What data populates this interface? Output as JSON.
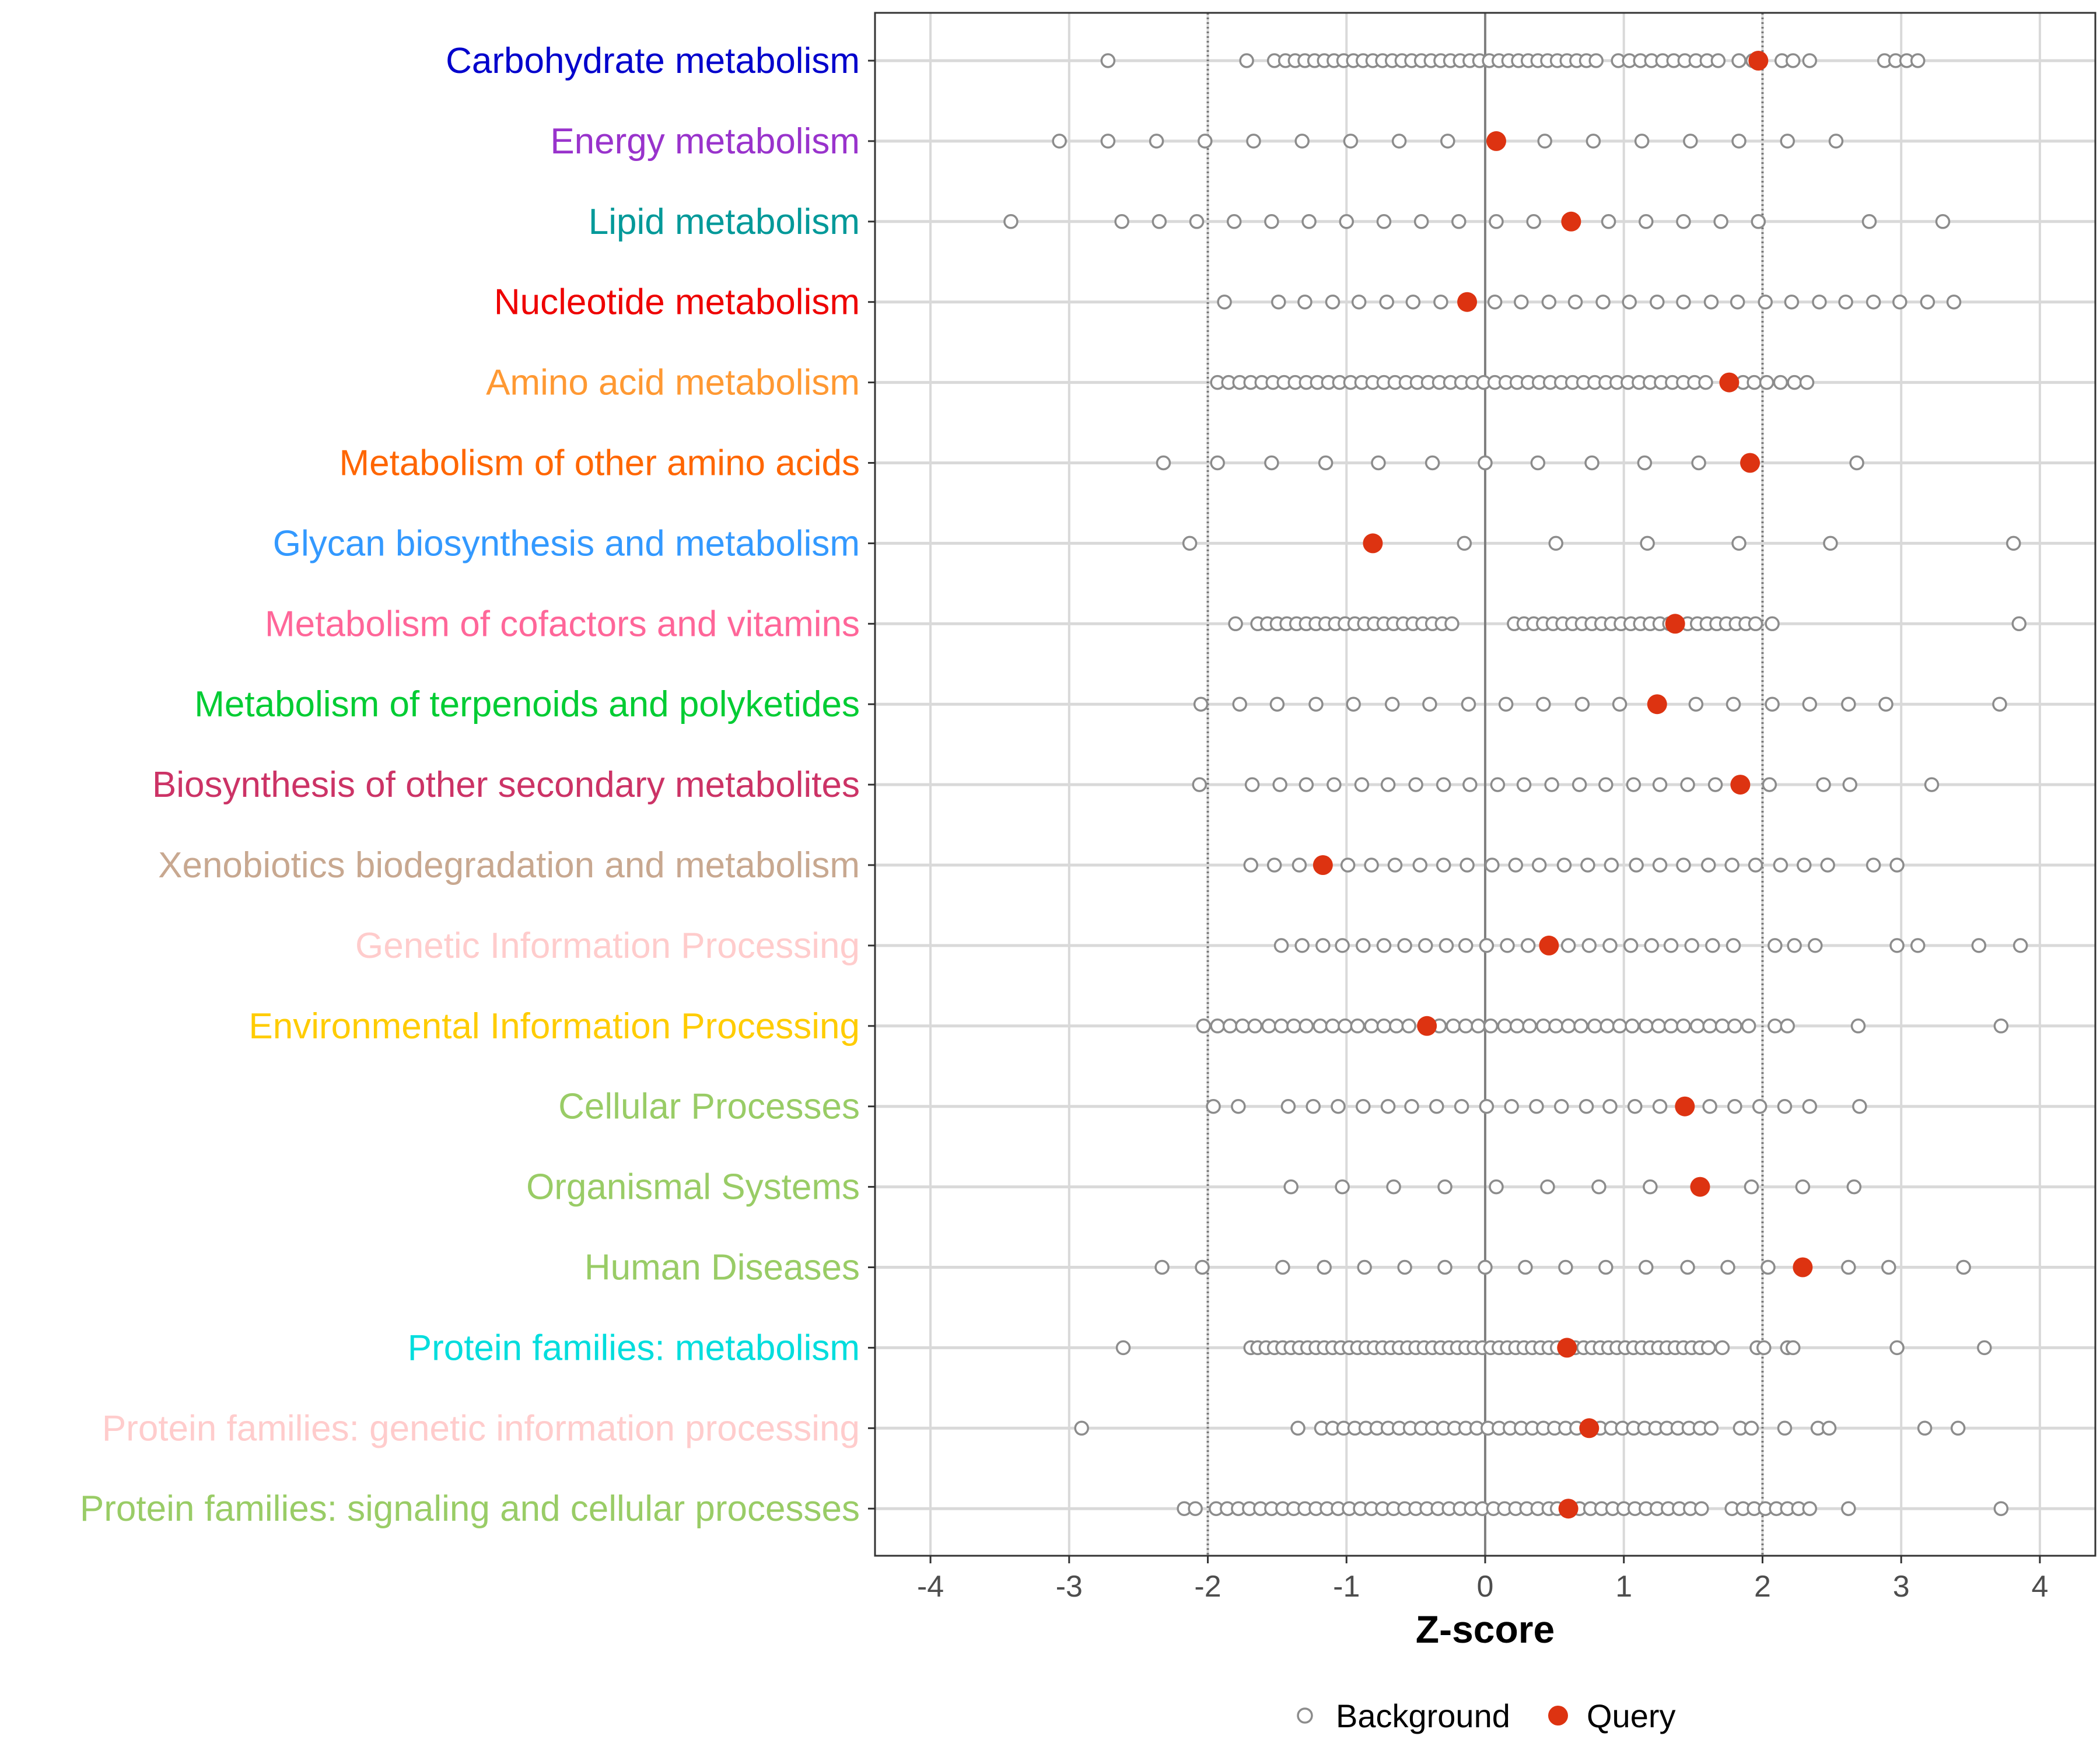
{
  "chart_data": {
    "type": "scatter",
    "xlabel": "Z-score",
    "xlim": [
      -4.4,
      4.4
    ],
    "x_ticks": [
      -4,
      -3,
      -2,
      -1,
      0,
      1,
      2,
      3,
      4
    ],
    "x_tick_labels": [
      "-4",
      "-3",
      "-2",
      "-1",
      "0",
      "1",
      "2",
      "3",
      "4"
    ],
    "reference_lines": [
      -2,
      2
    ],
    "zero_line": 0,
    "colors": {
      "background": "#8c8c8c",
      "query": "#dd3311",
      "grid": "#d9d9d9",
      "reference": "#777777"
    },
    "legend": {
      "position": "bottom",
      "items": [
        "Background",
        "Query"
      ]
    },
    "categories": [
      {
        "label": "Carbohydrate metabolism",
        "color": "#0000cc",
        "query": 1.97,
        "background": [
          -2.72,
          -1.72,
          -1.52,
          -1.44,
          -1.37,
          -1.3,
          -1.23,
          -1.16,
          -1.09,
          -1.02,
          -0.95,
          -0.88,
          -0.81,
          -0.74,
          -0.67,
          -0.6,
          -0.53,
          -0.46,
          -0.39,
          -0.32,
          -0.25,
          -0.18,
          -0.11,
          -0.04,
          0.03,
          0.1,
          0.17,
          0.24,
          0.31,
          0.38,
          0.45,
          0.52,
          0.59,
          0.66,
          0.73,
          0.8,
          0.96,
          1.04,
          1.12,
          1.2,
          1.28,
          1.36,
          1.44,
          1.52,
          1.6,
          1.68,
          1.83,
          1.93,
          2.14,
          2.22,
          2.34,
          2.88,
          2.96,
          3.04,
          3.12
        ]
      },
      {
        "label": "Energy metabolism",
        "color": "#9933cc",
        "query": 0.08,
        "background": [
          -3.07,
          -2.72,
          -2.37,
          -2.02,
          -1.67,
          -1.32,
          -0.97,
          -0.62,
          -0.27,
          0.08,
          0.43,
          0.78,
          1.13,
          1.48,
          1.83,
          2.18,
          2.53
        ]
      },
      {
        "label": "Lipid metabolism",
        "color": "#009999",
        "query": 0.62,
        "background": [
          -3.42,
          -2.62,
          -2.35,
          -2.08,
          -1.81,
          -1.54,
          -1.27,
          -1.0,
          -0.73,
          -0.46,
          -0.19,
          0.08,
          0.35,
          0.62,
          0.89,
          1.16,
          1.43,
          1.7,
          1.97,
          2.77,
          3.3
        ]
      },
      {
        "label": "Nucleotide metabolism",
        "color": "#ee0000",
        "query": -0.13,
        "background": [
          -1.88,
          -1.49,
          -1.3,
          -1.1,
          -0.91,
          -0.71,
          -0.52,
          -0.32,
          -0.13,
          0.07,
          0.26,
          0.46,
          0.65,
          0.85,
          1.04,
          1.24,
          1.43,
          1.63,
          1.82,
          2.02,
          2.21,
          2.41,
          2.6,
          2.8,
          2.99,
          3.19,
          3.38
        ]
      },
      {
        "label": "Amino acid metabolism",
        "color": "#ff9933",
        "query": 1.76,
        "background": [
          -1.93,
          -1.85,
          -1.77,
          -1.69,
          -1.61,
          -1.53,
          -1.45,
          -1.37,
          -1.29,
          -1.21,
          -1.13,
          -1.05,
          -0.97,
          -0.89,
          -0.81,
          -0.73,
          -0.65,
          -0.57,
          -0.49,
          -0.41,
          -0.33,
          -0.25,
          -0.17,
          -0.09,
          -0.01,
          0.07,
          0.15,
          0.23,
          0.31,
          0.39,
          0.47,
          0.55,
          0.63,
          0.71,
          0.79,
          0.87,
          0.95,
          1.03,
          1.11,
          1.19,
          1.27,
          1.35,
          1.43,
          1.51,
          1.59,
          1.76,
          1.86,
          1.94,
          2.03,
          2.13,
          2.23,
          2.32
        ]
      },
      {
        "label": "Metabolism of other amino acids",
        "color": "#ff6600",
        "query": 1.91,
        "background": [
          -2.32,
          -1.93,
          -1.54,
          -1.15,
          -0.77,
          -0.38,
          0.0,
          0.38,
          0.77,
          1.15,
          1.54,
          1.91,
          2.68
        ]
      },
      {
        "label": "Glycan biosynthesis and metabolism",
        "color": "#3399ff",
        "query": -0.81,
        "background": [
          -2.13,
          -0.81,
          -0.15,
          0.51,
          1.17,
          1.83,
          2.49,
          3.81
        ]
      },
      {
        "label": "Metabolism of cofactors and vitamins",
        "color": "#ff6699",
        "query": 1.37,
        "background": [
          -1.8,
          -1.64,
          -1.57,
          -1.5,
          -1.43,
          -1.36,
          -1.29,
          -1.22,
          -1.15,
          -1.08,
          -1.01,
          -0.94,
          -0.87,
          -0.8,
          -0.73,
          -0.66,
          -0.59,
          -0.52,
          -0.45,
          -0.38,
          -0.31,
          -0.24,
          0.21,
          0.28,
          0.35,
          0.42,
          0.49,
          0.56,
          0.63,
          0.7,
          0.77,
          0.84,
          0.91,
          0.98,
          1.05,
          1.12,
          1.19,
          1.26,
          1.33,
          1.46,
          1.53,
          1.6,
          1.67,
          1.74,
          1.81,
          1.88,
          1.95,
          2.07,
          3.85
        ]
      },
      {
        "label": "Metabolism of terpenoids and polyketides",
        "color": "#00cc33",
        "query": 1.24,
        "background": [
          -2.05,
          -1.77,
          -1.5,
          -1.22,
          -0.95,
          -0.67,
          -0.4,
          -0.12,
          0.15,
          0.42,
          0.7,
          0.97,
          1.24,
          1.52,
          1.79,
          2.07,
          2.34,
          2.62,
          2.89,
          3.71
        ]
      },
      {
        "label": "Biosynthesis of other secondary metabolites",
        "color": "#cc3366",
        "query": 1.84,
        "background": [
          -2.06,
          -1.68,
          -1.48,
          -1.29,
          -1.09,
          -0.89,
          -0.7,
          -0.5,
          -0.3,
          -0.11,
          0.09,
          0.28,
          0.48,
          0.68,
          0.87,
          1.07,
          1.26,
          1.46,
          1.66,
          1.84,
          2.05,
          2.44,
          2.63,
          3.22
        ]
      },
      {
        "label": "Xenobiotics biodegradation and metabolism",
        "color": "#c8a890",
        "query": -1.17,
        "background": [
          -1.69,
          -1.52,
          -1.34,
          -1.17,
          -0.99,
          -0.82,
          -0.65,
          -0.47,
          -0.3,
          -0.13,
          0.05,
          0.22,
          0.39,
          0.57,
          0.74,
          0.91,
          1.09,
          1.26,
          1.43,
          1.61,
          1.78,
          1.95,
          2.13,
          2.3,
          2.47,
          2.8,
          2.97
        ]
      },
      {
        "label": "Genetic Information Processing",
        "color": "#ffcccc",
        "query": 0.46,
        "background": [
          -1.47,
          -1.32,
          -1.17,
          -1.03,
          -0.88,
          -0.73,
          -0.58,
          -0.43,
          -0.28,
          -0.14,
          0.01,
          0.16,
          0.31,
          0.46,
          0.6,
          0.75,
          0.9,
          1.05,
          1.2,
          1.34,
          1.49,
          1.64,
          1.79,
          2.09,
          2.23,
          2.38,
          2.97,
          3.12,
          3.56,
          3.86
        ]
      },
      {
        "label": "Environmental Information Processing",
        "color": "#ffcc00",
        "query": -0.42,
        "background": [
          -2.03,
          -1.93,
          -1.84,
          -1.75,
          -1.66,
          -1.56,
          -1.47,
          -1.38,
          -1.29,
          -1.19,
          -1.1,
          -1.01,
          -0.92,
          -0.82,
          -0.73,
          -0.64,
          -0.55,
          -0.42,
          -0.33,
          -0.23,
          -0.14,
          -0.05,
          0.04,
          0.14,
          0.23,
          0.32,
          0.42,
          0.51,
          0.6,
          0.69,
          0.79,
          0.88,
          0.97,
          1.06,
          1.16,
          1.25,
          1.34,
          1.43,
          1.53,
          1.62,
          1.71,
          1.8,
          1.9,
          2.09,
          2.18,
          2.69,
          3.72
        ]
      },
      {
        "label": "Cellular Processes",
        "color": "#99cc66",
        "query": 1.44,
        "background": [
          -1.96,
          -1.78,
          -1.42,
          -1.24,
          -1.06,
          -0.88,
          -0.7,
          -0.53,
          -0.35,
          -0.17,
          0.01,
          0.19,
          0.37,
          0.55,
          0.73,
          0.9,
          1.08,
          1.26,
          1.44,
          1.62,
          1.8,
          1.98,
          2.16,
          2.34,
          2.7
        ]
      },
      {
        "label": "Organismal Systems",
        "color": "#99cc66",
        "query": 1.55,
        "background": [
          -1.4,
          -1.03,
          -0.66,
          -0.29,
          0.08,
          0.45,
          0.82,
          1.19,
          1.55,
          1.92,
          2.29,
          2.66
        ]
      },
      {
        "label": "Human Diseases",
        "color": "#99cc66",
        "query": 2.29,
        "background": [
          -2.33,
          -2.04,
          -1.46,
          -1.16,
          -0.87,
          -0.58,
          -0.29,
          0.0,
          0.29,
          0.58,
          0.87,
          1.16,
          1.46,
          1.75,
          2.04,
          2.29,
          2.62,
          2.91,
          3.45
        ]
      },
      {
        "label": "Protein families: metabolism",
        "color": "#00dddd",
        "query": 0.59,
        "background": [
          -2.61,
          -1.69,
          -1.64,
          -1.58,
          -1.52,
          -1.46,
          -1.4,
          -1.34,
          -1.28,
          -1.22,
          -1.16,
          -1.1,
          -1.04,
          -0.98,
          -0.92,
          -0.86,
          -0.8,
          -0.74,
          -0.68,
          -0.62,
          -0.56,
          -0.5,
          -0.44,
          -0.38,
          -0.32,
          -0.26,
          -0.2,
          -0.14,
          -0.08,
          -0.02,
          0.04,
          0.1,
          0.16,
          0.22,
          0.28,
          0.34,
          0.4,
          0.46,
          0.52,
          0.59,
          0.65,
          0.71,
          0.77,
          0.83,
          0.89,
          0.95,
          1.01,
          1.07,
          1.13,
          1.19,
          1.25,
          1.31,
          1.37,
          1.43,
          1.49,
          1.55,
          1.61,
          1.71,
          1.96,
          2.01,
          2.18,
          2.22,
          2.97,
          3.6
        ]
      },
      {
        "label": "Protein families: genetic information processing",
        "color": "#ffcccc",
        "query": 0.75,
        "background": [
          -2.91,
          -1.35,
          -1.18,
          -1.1,
          -1.02,
          -0.94,
          -0.86,
          -0.78,
          -0.7,
          -0.62,
          -0.54,
          -0.46,
          -0.38,
          -0.3,
          -0.22,
          -0.14,
          -0.06,
          0.02,
          0.1,
          0.18,
          0.26,
          0.34,
          0.42,
          0.5,
          0.58,
          0.66,
          0.75,
          0.83,
          0.91,
          0.99,
          1.07,
          1.15,
          1.23,
          1.31,
          1.39,
          1.47,
          1.55,
          1.63,
          1.84,
          1.92,
          2.16,
          2.4,
          2.48,
          3.17,
          3.41
        ]
      },
      {
        "label": "Protein families: signaling and cellular processes",
        "color": "#99cc66",
        "query": 0.6,
        "background": [
          -2.17,
          -2.09,
          -1.94,
          -1.86,
          -1.78,
          -1.7,
          -1.62,
          -1.54,
          -1.46,
          -1.38,
          -1.3,
          -1.22,
          -1.14,
          -1.06,
          -0.98,
          -0.9,
          -0.82,
          -0.74,
          -0.66,
          -0.58,
          -0.5,
          -0.42,
          -0.34,
          -0.26,
          -0.18,
          -0.1,
          -0.02,
          0.06,
          0.14,
          0.22,
          0.3,
          0.38,
          0.46,
          0.52,
          0.6,
          0.68,
          0.76,
          0.84,
          0.92,
          1.0,
          1.08,
          1.16,
          1.24,
          1.32,
          1.4,
          1.48,
          1.56,
          1.78,
          1.86,
          1.94,
          2.02,
          2.1,
          2.18,
          2.26,
          2.34,
          2.62,
          3.72
        ]
      }
    ]
  }
}
